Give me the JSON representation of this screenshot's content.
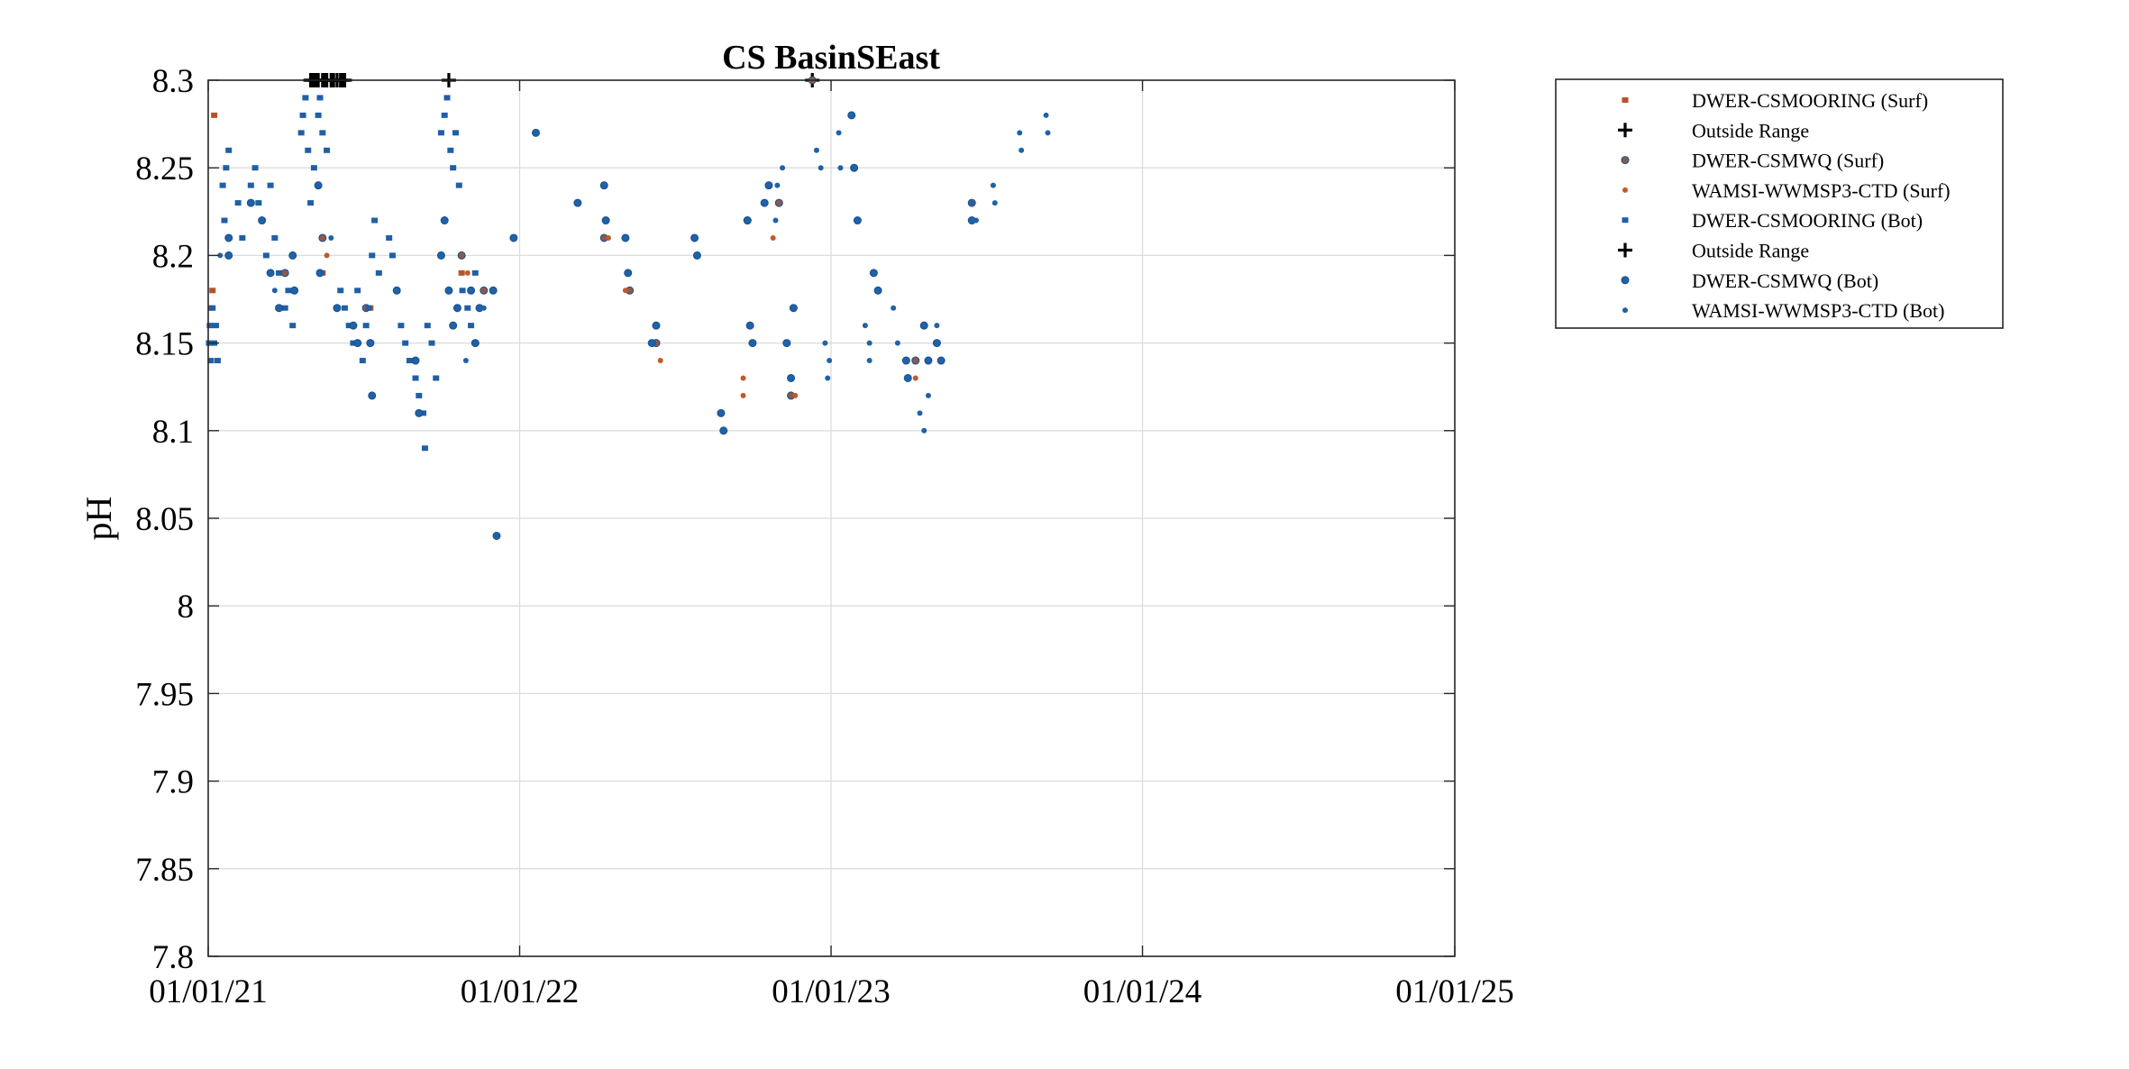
{
  "chart_data": {
    "type": "scatter",
    "title": "CS BasinSEast",
    "xlabel": "",
    "ylabel": "pH",
    "xlim": [
      "2021-01-01",
      "2025-01-01"
    ],
    "ylim": [
      7.8,
      8.3
    ],
    "x_ticks": [
      "2021-01-01",
      "2022-01-01",
      "2023-01-01",
      "2024-01-01",
      "2025-01-01"
    ],
    "x_tick_labels": [
      "01/01/21",
      "01/01/22",
      "01/01/23",
      "01/01/24",
      "01/01/25"
    ],
    "y_ticks": [
      7.8,
      7.85,
      7.9,
      7.95,
      8,
      8.05,
      8.1,
      8.15,
      8.2,
      8.25,
      8.3
    ],
    "y_tick_labels": [
      "7.8",
      "7.85",
      "7.9",
      "7.95",
      "8",
      "8.05",
      "8.1",
      "8.15",
      "8.2",
      "8.25",
      "8.3"
    ],
    "grid": true,
    "legend_position": "outside-top-right",
    "series": [
      {
        "name": "DWER-CSMOORING (Surf)",
        "marker": "square",
        "color": "#B5532B",
        "points": [
          [
            "2021-01-08",
            8.28
          ],
          [
            "2021-01-05",
            8.17
          ],
          [
            "2021-01-06",
            8.18
          ],
          [
            "2021-05-15",
            8.19
          ],
          [
            "2021-07-10",
            8.17
          ],
          [
            "2021-10-25",
            8.19
          ]
        ]
      },
      {
        "name": "Outside Range",
        "marker": "plus",
        "color": "#000000",
        "points": [
          [
            "2021-05-01",
            8.3
          ],
          [
            "2021-05-05",
            8.3
          ],
          [
            "2021-05-10",
            8.3
          ],
          [
            "2021-05-15",
            8.3
          ],
          [
            "2021-05-20",
            8.3
          ],
          [
            "2021-05-25",
            8.3
          ],
          [
            "2021-06-01",
            8.3
          ],
          [
            "2021-06-05",
            8.3
          ],
          [
            "2021-06-10",
            8.3
          ],
          [
            "2021-10-10",
            8.3
          ],
          [
            "2022-12-10",
            8.3
          ]
        ]
      },
      {
        "name": "DWER-CSMWQ (Surf)",
        "marker": "circle",
        "color": "#8B5A4E",
        "points": [
          [
            "2021-04-01",
            8.19
          ],
          [
            "2021-05-15",
            8.21
          ],
          [
            "2021-07-05",
            8.17
          ],
          [
            "2021-10-25",
            8.2
          ],
          [
            "2021-11-20",
            8.18
          ],
          [
            "2022-04-10",
            8.21
          ],
          [
            "2022-05-10",
            8.18
          ],
          [
            "2022-06-10",
            8.15
          ],
          [
            "2022-09-25",
            8.22
          ],
          [
            "2022-11-01",
            8.23
          ],
          [
            "2022-11-15",
            8.12
          ],
          [
            "2022-12-10",
            8.3
          ],
          [
            "2023-04-10",
            8.14
          ],
          [
            "2023-06-15",
            8.23
          ]
        ]
      },
      {
        "name": "WAMSI-WWMSP3-CTD (Surf)",
        "marker": "dot",
        "color": "#C05A2A",
        "points": [
          [
            "2021-05-20",
            8.2
          ],
          [
            "2021-11-01",
            8.19
          ],
          [
            "2022-04-15",
            8.21
          ],
          [
            "2022-05-05",
            8.18
          ],
          [
            "2022-06-15",
            8.14
          ],
          [
            "2022-09-20",
            8.12
          ],
          [
            "2022-09-20",
            8.13
          ],
          [
            "2022-10-25",
            8.21
          ],
          [
            "2022-11-20",
            8.12
          ],
          [
            "2023-04-10",
            8.13
          ]
        ]
      },
      {
        "name": "DWER-CSMOORING (Bot)",
        "marker": "square",
        "color": "#1F5FA6",
        "points": [
          [
            "2021-01-02",
            8.15
          ],
          [
            "2021-01-03",
            8.16
          ],
          [
            "2021-01-04",
            8.14
          ],
          [
            "2021-01-06",
            8.17
          ],
          [
            "2021-01-08",
            8.15
          ],
          [
            "2021-01-10",
            8.16
          ],
          [
            "2021-01-12",
            8.14
          ],
          [
            "2021-01-18",
            8.24
          ],
          [
            "2021-01-20",
            8.22
          ],
          [
            "2021-01-22",
            8.25
          ],
          [
            "2021-01-25",
            8.26
          ],
          [
            "2021-02-05",
            8.23
          ],
          [
            "2021-02-10",
            8.21
          ],
          [
            "2021-02-20",
            8.24
          ],
          [
            "2021-02-25",
            8.25
          ],
          [
            "2021-03-01",
            8.23
          ],
          [
            "2021-03-05",
            8.22
          ],
          [
            "2021-03-10",
            8.2
          ],
          [
            "2021-03-15",
            8.24
          ],
          [
            "2021-03-20",
            8.21
          ],
          [
            "2021-03-25",
            8.19
          ],
          [
            "2021-04-01",
            8.17
          ],
          [
            "2021-04-05",
            8.18
          ],
          [
            "2021-04-10",
            8.16
          ],
          [
            "2021-04-20",
            8.27
          ],
          [
            "2021-04-22",
            8.28
          ],
          [
            "2021-04-25",
            8.29
          ],
          [
            "2021-04-28",
            8.26
          ],
          [
            "2021-05-01",
            8.23
          ],
          [
            "2021-05-05",
            8.25
          ],
          [
            "2021-05-10",
            8.28
          ],
          [
            "2021-05-12",
            8.29
          ],
          [
            "2021-05-15",
            8.27
          ],
          [
            "2021-05-20",
            8.26
          ],
          [
            "2021-06-05",
            8.18
          ],
          [
            "2021-06-10",
            8.17
          ],
          [
            "2021-06-15",
            8.16
          ],
          [
            "2021-06-20",
            8.15
          ],
          [
            "2021-06-25",
            8.18
          ],
          [
            "2021-07-01",
            8.14
          ],
          [
            "2021-07-05",
            8.16
          ],
          [
            "2021-07-08",
            8.17
          ],
          [
            "2021-07-12",
            8.2
          ],
          [
            "2021-07-15",
            8.22
          ],
          [
            "2021-07-20",
            8.19
          ],
          [
            "2021-08-01",
            8.21
          ],
          [
            "2021-08-05",
            8.2
          ],
          [
            "2021-08-10",
            8.18
          ],
          [
            "2021-08-15",
            8.16
          ],
          [
            "2021-08-20",
            8.15
          ],
          [
            "2021-08-25",
            8.14
          ],
          [
            "2021-09-01",
            8.13
          ],
          [
            "2021-09-05",
            8.12
          ],
          [
            "2021-09-10",
            8.11
          ],
          [
            "2021-09-12",
            8.09
          ],
          [
            "2021-09-15",
            8.16
          ],
          [
            "2021-09-20",
            8.15
          ],
          [
            "2021-09-25",
            8.13
          ],
          [
            "2021-10-01",
            8.27
          ],
          [
            "2021-10-05",
            8.28
          ],
          [
            "2021-10-08",
            8.29
          ],
          [
            "2021-10-12",
            8.26
          ],
          [
            "2021-10-15",
            8.25
          ],
          [
            "2021-10-18",
            8.27
          ],
          [
            "2021-10-22",
            8.24
          ],
          [
            "2021-10-26",
            8.18
          ],
          [
            "2021-11-01",
            8.17
          ],
          [
            "2021-11-05",
            8.16
          ],
          [
            "2021-11-10",
            8.19
          ]
        ]
      },
      {
        "name": "Outside Range",
        "marker": "plus",
        "color": "#000000",
        "points": [
          [
            "2021-05-02",
            8.3
          ],
          [
            "2021-05-08",
            8.3
          ],
          [
            "2021-05-18",
            8.3
          ],
          [
            "2021-05-28",
            8.3
          ],
          [
            "2021-06-08",
            8.3
          ]
        ]
      },
      {
        "name": "DWER-CSMWQ (Bot)",
        "marker": "circle",
        "color": "#1F62A8",
        "points": [
          [
            "2021-01-25",
            8.2
          ],
          [
            "2021-01-25",
            8.21
          ],
          [
            "2021-02-20",
            8.23
          ],
          [
            "2021-03-05",
            8.22
          ],
          [
            "2021-03-15",
            8.19
          ],
          [
            "2021-03-25",
            8.17
          ],
          [
            "2021-04-10",
            8.2
          ],
          [
            "2021-04-12",
            8.18
          ],
          [
            "2021-05-10",
            8.24
          ],
          [
            "2021-05-12",
            8.19
          ],
          [
            "2021-06-01",
            8.17
          ],
          [
            "2021-06-20",
            8.16
          ],
          [
            "2021-06-25",
            8.15
          ],
          [
            "2021-07-10",
            8.15
          ],
          [
            "2021-07-12",
            8.12
          ],
          [
            "2021-08-10",
            8.18
          ],
          [
            "2021-09-01",
            8.14
          ],
          [
            "2021-09-05",
            8.11
          ],
          [
            "2021-10-01",
            8.2
          ],
          [
            "2021-10-05",
            8.22
          ],
          [
            "2021-10-10",
            8.18
          ],
          [
            "2021-10-15",
            8.16
          ],
          [
            "2021-10-20",
            8.17
          ],
          [
            "2021-11-05",
            8.18
          ],
          [
            "2021-11-10",
            8.15
          ],
          [
            "2021-11-15",
            8.17
          ],
          [
            "2021-12-01",
            8.18
          ],
          [
            "2021-12-05",
            8.04
          ],
          [
            "2021-12-25",
            8.21
          ],
          [
            "2022-01-20",
            8.27
          ],
          [
            "2022-03-10",
            8.23
          ],
          [
            "2022-04-10",
            8.24
          ],
          [
            "2022-04-12",
            8.22
          ],
          [
            "2022-05-05",
            8.21
          ],
          [
            "2022-05-08",
            8.19
          ],
          [
            "2022-06-05",
            8.15
          ],
          [
            "2022-06-10",
            8.16
          ],
          [
            "2022-07-25",
            8.21
          ],
          [
            "2022-07-28",
            8.2
          ],
          [
            "2022-08-25",
            8.11
          ],
          [
            "2022-08-28",
            8.1
          ],
          [
            "2022-09-25",
            8.22
          ],
          [
            "2022-09-28",
            8.16
          ],
          [
            "2022-10-01",
            8.15
          ],
          [
            "2022-10-15",
            8.23
          ],
          [
            "2022-10-20",
            8.24
          ],
          [
            "2022-11-10",
            8.15
          ],
          [
            "2022-11-15",
            8.13
          ],
          [
            "2022-11-18",
            8.17
          ],
          [
            "2023-01-25",
            8.28
          ],
          [
            "2023-01-28",
            8.25
          ],
          [
            "2023-02-01",
            8.22
          ],
          [
            "2023-02-20",
            8.19
          ],
          [
            "2023-02-25",
            8.18
          ],
          [
            "2023-03-30",
            8.14
          ],
          [
            "2023-04-01",
            8.13
          ],
          [
            "2023-04-20",
            8.16
          ],
          [
            "2023-04-25",
            8.14
          ],
          [
            "2023-05-05",
            8.15
          ],
          [
            "2023-05-10",
            8.14
          ],
          [
            "2023-06-15",
            8.22
          ]
        ]
      },
      {
        "name": "WAMSI-WWMSP3-CTD (Bot)",
        "marker": "dot",
        "color": "#1F62A8",
        "points": [
          [
            "2021-01-15",
            8.2
          ],
          [
            "2021-03-20",
            8.18
          ],
          [
            "2021-05-25",
            8.21
          ],
          [
            "2021-07-15",
            8.22
          ],
          [
            "2021-10-30",
            8.14
          ],
          [
            "2021-11-20",
            8.17
          ],
          [
            "2022-09-25",
            8.22
          ],
          [
            "2022-10-28",
            8.22
          ],
          [
            "2022-10-30",
            8.24
          ],
          [
            "2022-11-05",
            8.25
          ],
          [
            "2022-12-15",
            8.26
          ],
          [
            "2022-12-20",
            8.25
          ],
          [
            "2022-12-25",
            8.15
          ],
          [
            "2022-12-28",
            8.13
          ],
          [
            "2022-12-30",
            8.14
          ],
          [
            "2023-01-10",
            8.27
          ],
          [
            "2023-01-12",
            8.25
          ],
          [
            "2023-02-10",
            8.16
          ],
          [
            "2023-02-15",
            8.15
          ],
          [
            "2023-02-15",
            8.14
          ],
          [
            "2023-03-15",
            8.17
          ],
          [
            "2023-03-20",
            8.15
          ],
          [
            "2023-04-15",
            8.11
          ],
          [
            "2023-04-20",
            8.1
          ],
          [
            "2023-04-25",
            8.12
          ],
          [
            "2023-05-05",
            8.16
          ],
          [
            "2023-06-15",
            8.23
          ],
          [
            "2023-06-20",
            8.22
          ],
          [
            "2023-07-10",
            8.24
          ],
          [
            "2023-07-12",
            8.23
          ],
          [
            "2023-08-10",
            8.27
          ],
          [
            "2023-08-12",
            8.26
          ],
          [
            "2023-09-10",
            8.28
          ],
          [
            "2023-09-12",
            8.27
          ]
        ]
      }
    ]
  }
}
